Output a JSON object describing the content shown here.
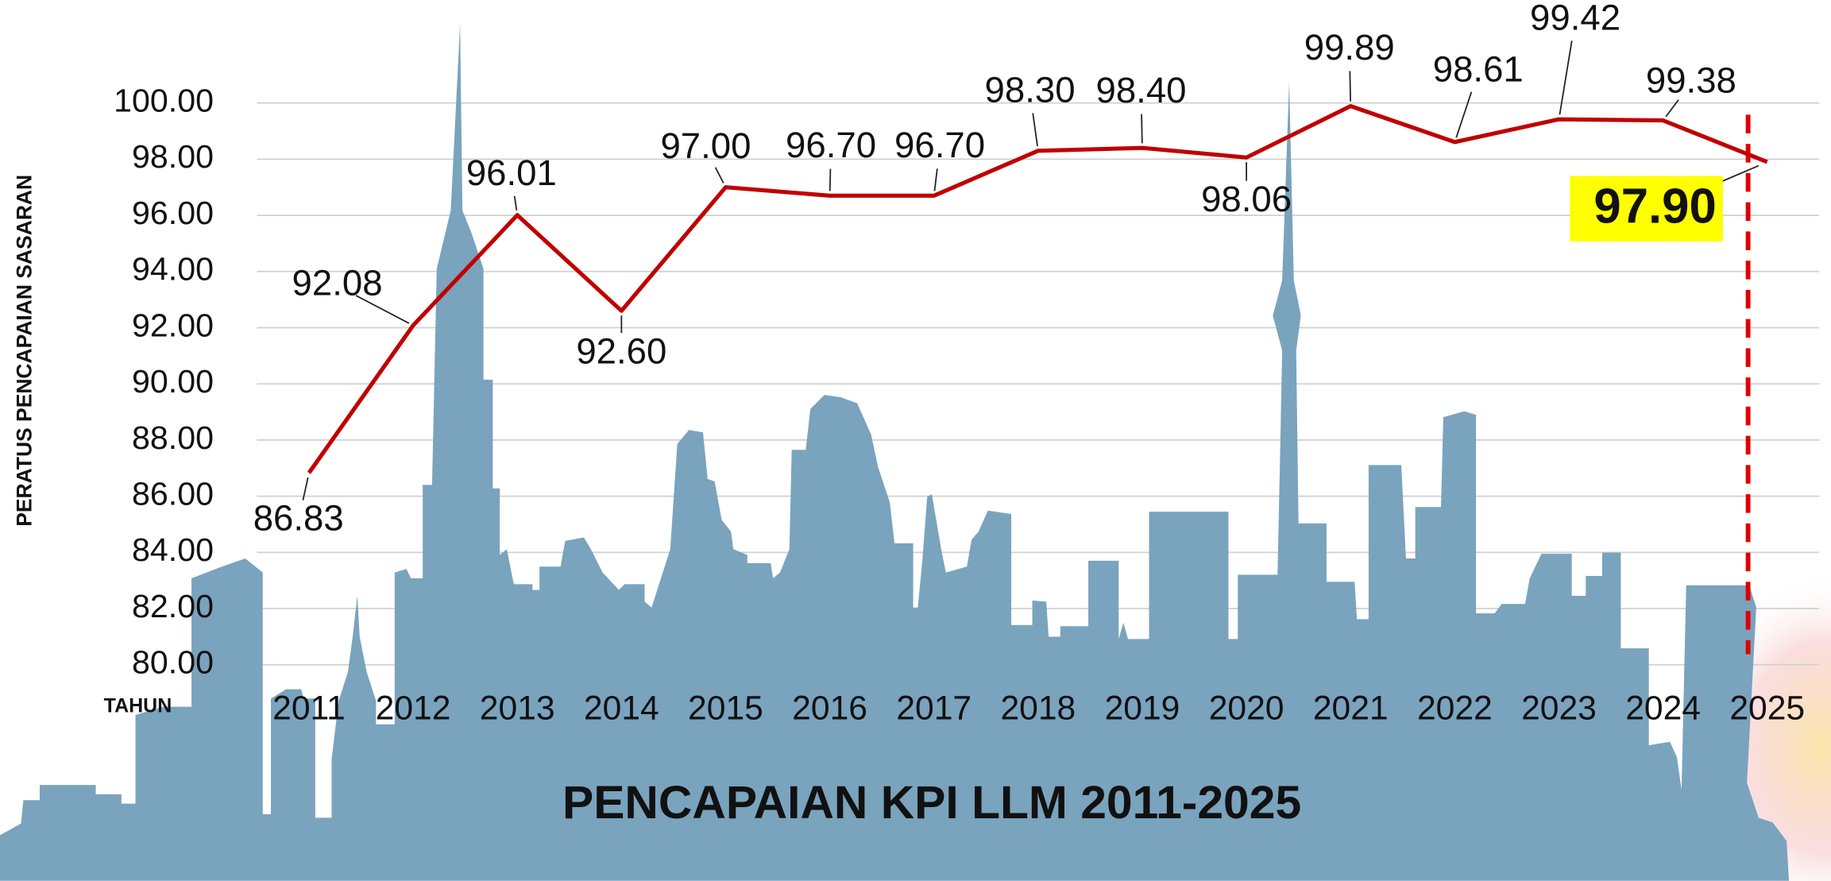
{
  "chart_data": {
    "type": "line",
    "title": "PENCAPAIAN KPI LLM 2011-2025",
    "y_label": "PERATUS PENCAPAIAN SASARAN",
    "x_label": "TAHUN",
    "categories": [
      "2011",
      "2012",
      "2013",
      "2014",
      "2015",
      "2016",
      "2017",
      "2018",
      "2019",
      "2020",
      "2021",
      "2022",
      "2023",
      "2024",
      "2025"
    ],
    "values": [
      86.83,
      92.08,
      96.01,
      92.6,
      97.0,
      96.7,
      96.7,
      98.3,
      98.4,
      98.06,
      99.89,
      98.61,
      99.42,
      99.38,
      97.9
    ],
    "value_labels": [
      "86.83",
      "92.08",
      "96.01",
      "92.60",
      "97.00",
      "96.70",
      "96.70",
      "98.30",
      "98.40",
      "98.06",
      "99.89",
      "98.61",
      "99.42",
      "99.38",
      "97.90"
    ],
    "color": "#c00000",
    "ylim": [
      80,
      100
    ],
    "yticks": [
      {
        "value": 80,
        "label": "80.00"
      },
      {
        "value": 82,
        "label": "82.00"
      },
      {
        "value": 84,
        "label": "84.00"
      },
      {
        "value": 86,
        "label": "86.00"
      },
      {
        "value": 88,
        "label": "88.00"
      },
      {
        "value": 90,
        "label": "90.00"
      },
      {
        "value": 92,
        "label": "92.00"
      },
      {
        "value": 94,
        "label": "94.00"
      },
      {
        "value": 96,
        "label": "96.00"
      },
      {
        "value": 98,
        "label": "98.00"
      },
      {
        "value": 100,
        "label": "100.00"
      }
    ],
    "grid": true
  }
}
